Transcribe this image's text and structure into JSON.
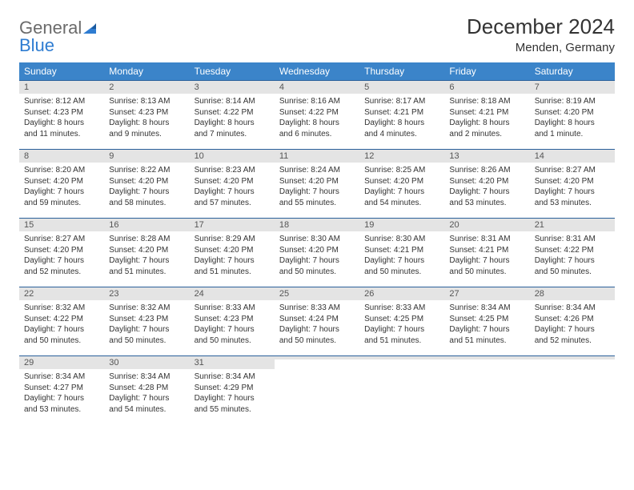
{
  "logo": {
    "word1": "General",
    "word2": "Blue"
  },
  "title": "December 2024",
  "subtitle": "Menden, Germany",
  "colors": {
    "header_bg": "#3b84c9",
    "header_text": "#ffffff",
    "daynum_bg": "#e4e4e4",
    "daynum_text": "#555555",
    "border_top": "#2a609a",
    "body_text": "#333333",
    "logo_gray": "#6b6b6b",
    "logo_blue": "#2e7cd1"
  },
  "typography": {
    "title_fontsize": 26,
    "subtitle_fontsize": 15,
    "weekday_fontsize": 12,
    "daynum_fontsize": 11,
    "body_fontsize": 10
  },
  "weekdays": [
    "Sunday",
    "Monday",
    "Tuesday",
    "Wednesday",
    "Thursday",
    "Friday",
    "Saturday"
  ],
  "weeks": [
    [
      {
        "num": "1",
        "sunrise": "Sunrise: 8:12 AM",
        "sunset": "Sunset: 4:23 PM",
        "day1": "Daylight: 8 hours",
        "day2": "and 11 minutes."
      },
      {
        "num": "2",
        "sunrise": "Sunrise: 8:13 AM",
        "sunset": "Sunset: 4:23 PM",
        "day1": "Daylight: 8 hours",
        "day2": "and 9 minutes."
      },
      {
        "num": "3",
        "sunrise": "Sunrise: 8:14 AM",
        "sunset": "Sunset: 4:22 PM",
        "day1": "Daylight: 8 hours",
        "day2": "and 7 minutes."
      },
      {
        "num": "4",
        "sunrise": "Sunrise: 8:16 AM",
        "sunset": "Sunset: 4:22 PM",
        "day1": "Daylight: 8 hours",
        "day2": "and 6 minutes."
      },
      {
        "num": "5",
        "sunrise": "Sunrise: 8:17 AM",
        "sunset": "Sunset: 4:21 PM",
        "day1": "Daylight: 8 hours",
        "day2": "and 4 minutes."
      },
      {
        "num": "6",
        "sunrise": "Sunrise: 8:18 AM",
        "sunset": "Sunset: 4:21 PM",
        "day1": "Daylight: 8 hours",
        "day2": "and 2 minutes."
      },
      {
        "num": "7",
        "sunrise": "Sunrise: 8:19 AM",
        "sunset": "Sunset: 4:20 PM",
        "day1": "Daylight: 8 hours",
        "day2": "and 1 minute."
      }
    ],
    [
      {
        "num": "8",
        "sunrise": "Sunrise: 8:20 AM",
        "sunset": "Sunset: 4:20 PM",
        "day1": "Daylight: 7 hours",
        "day2": "and 59 minutes."
      },
      {
        "num": "9",
        "sunrise": "Sunrise: 8:22 AM",
        "sunset": "Sunset: 4:20 PM",
        "day1": "Daylight: 7 hours",
        "day2": "and 58 minutes."
      },
      {
        "num": "10",
        "sunrise": "Sunrise: 8:23 AM",
        "sunset": "Sunset: 4:20 PM",
        "day1": "Daylight: 7 hours",
        "day2": "and 57 minutes."
      },
      {
        "num": "11",
        "sunrise": "Sunrise: 8:24 AM",
        "sunset": "Sunset: 4:20 PM",
        "day1": "Daylight: 7 hours",
        "day2": "and 55 minutes."
      },
      {
        "num": "12",
        "sunrise": "Sunrise: 8:25 AM",
        "sunset": "Sunset: 4:20 PM",
        "day1": "Daylight: 7 hours",
        "day2": "and 54 minutes."
      },
      {
        "num": "13",
        "sunrise": "Sunrise: 8:26 AM",
        "sunset": "Sunset: 4:20 PM",
        "day1": "Daylight: 7 hours",
        "day2": "and 53 minutes."
      },
      {
        "num": "14",
        "sunrise": "Sunrise: 8:27 AM",
        "sunset": "Sunset: 4:20 PM",
        "day1": "Daylight: 7 hours",
        "day2": "and 53 minutes."
      }
    ],
    [
      {
        "num": "15",
        "sunrise": "Sunrise: 8:27 AM",
        "sunset": "Sunset: 4:20 PM",
        "day1": "Daylight: 7 hours",
        "day2": "and 52 minutes."
      },
      {
        "num": "16",
        "sunrise": "Sunrise: 8:28 AM",
        "sunset": "Sunset: 4:20 PM",
        "day1": "Daylight: 7 hours",
        "day2": "and 51 minutes."
      },
      {
        "num": "17",
        "sunrise": "Sunrise: 8:29 AM",
        "sunset": "Sunset: 4:20 PM",
        "day1": "Daylight: 7 hours",
        "day2": "and 51 minutes."
      },
      {
        "num": "18",
        "sunrise": "Sunrise: 8:30 AM",
        "sunset": "Sunset: 4:20 PM",
        "day1": "Daylight: 7 hours",
        "day2": "and 50 minutes."
      },
      {
        "num": "19",
        "sunrise": "Sunrise: 8:30 AM",
        "sunset": "Sunset: 4:21 PM",
        "day1": "Daylight: 7 hours",
        "day2": "and 50 minutes."
      },
      {
        "num": "20",
        "sunrise": "Sunrise: 8:31 AM",
        "sunset": "Sunset: 4:21 PM",
        "day1": "Daylight: 7 hours",
        "day2": "and 50 minutes."
      },
      {
        "num": "21",
        "sunrise": "Sunrise: 8:31 AM",
        "sunset": "Sunset: 4:22 PM",
        "day1": "Daylight: 7 hours",
        "day2": "and 50 minutes."
      }
    ],
    [
      {
        "num": "22",
        "sunrise": "Sunrise: 8:32 AM",
        "sunset": "Sunset: 4:22 PM",
        "day1": "Daylight: 7 hours",
        "day2": "and 50 minutes."
      },
      {
        "num": "23",
        "sunrise": "Sunrise: 8:32 AM",
        "sunset": "Sunset: 4:23 PM",
        "day1": "Daylight: 7 hours",
        "day2": "and 50 minutes."
      },
      {
        "num": "24",
        "sunrise": "Sunrise: 8:33 AM",
        "sunset": "Sunset: 4:23 PM",
        "day1": "Daylight: 7 hours",
        "day2": "and 50 minutes."
      },
      {
        "num": "25",
        "sunrise": "Sunrise: 8:33 AM",
        "sunset": "Sunset: 4:24 PM",
        "day1": "Daylight: 7 hours",
        "day2": "and 50 minutes."
      },
      {
        "num": "26",
        "sunrise": "Sunrise: 8:33 AM",
        "sunset": "Sunset: 4:25 PM",
        "day1": "Daylight: 7 hours",
        "day2": "and 51 minutes."
      },
      {
        "num": "27",
        "sunrise": "Sunrise: 8:34 AM",
        "sunset": "Sunset: 4:25 PM",
        "day1": "Daylight: 7 hours",
        "day2": "and 51 minutes."
      },
      {
        "num": "28",
        "sunrise": "Sunrise: 8:34 AM",
        "sunset": "Sunset: 4:26 PM",
        "day1": "Daylight: 7 hours",
        "day2": "and 52 minutes."
      }
    ],
    [
      {
        "num": "29",
        "sunrise": "Sunrise: 8:34 AM",
        "sunset": "Sunset: 4:27 PM",
        "day1": "Daylight: 7 hours",
        "day2": "and 53 minutes."
      },
      {
        "num": "30",
        "sunrise": "Sunrise: 8:34 AM",
        "sunset": "Sunset: 4:28 PM",
        "day1": "Daylight: 7 hours",
        "day2": "and 54 minutes."
      },
      {
        "num": "31",
        "sunrise": "Sunrise: 8:34 AM",
        "sunset": "Sunset: 4:29 PM",
        "day1": "Daylight: 7 hours",
        "day2": "and 55 minutes."
      },
      {
        "empty": true,
        "num": " "
      },
      {
        "empty": true,
        "num": " "
      },
      {
        "empty": true,
        "num": " "
      },
      {
        "empty": true,
        "num": " "
      }
    ]
  ]
}
